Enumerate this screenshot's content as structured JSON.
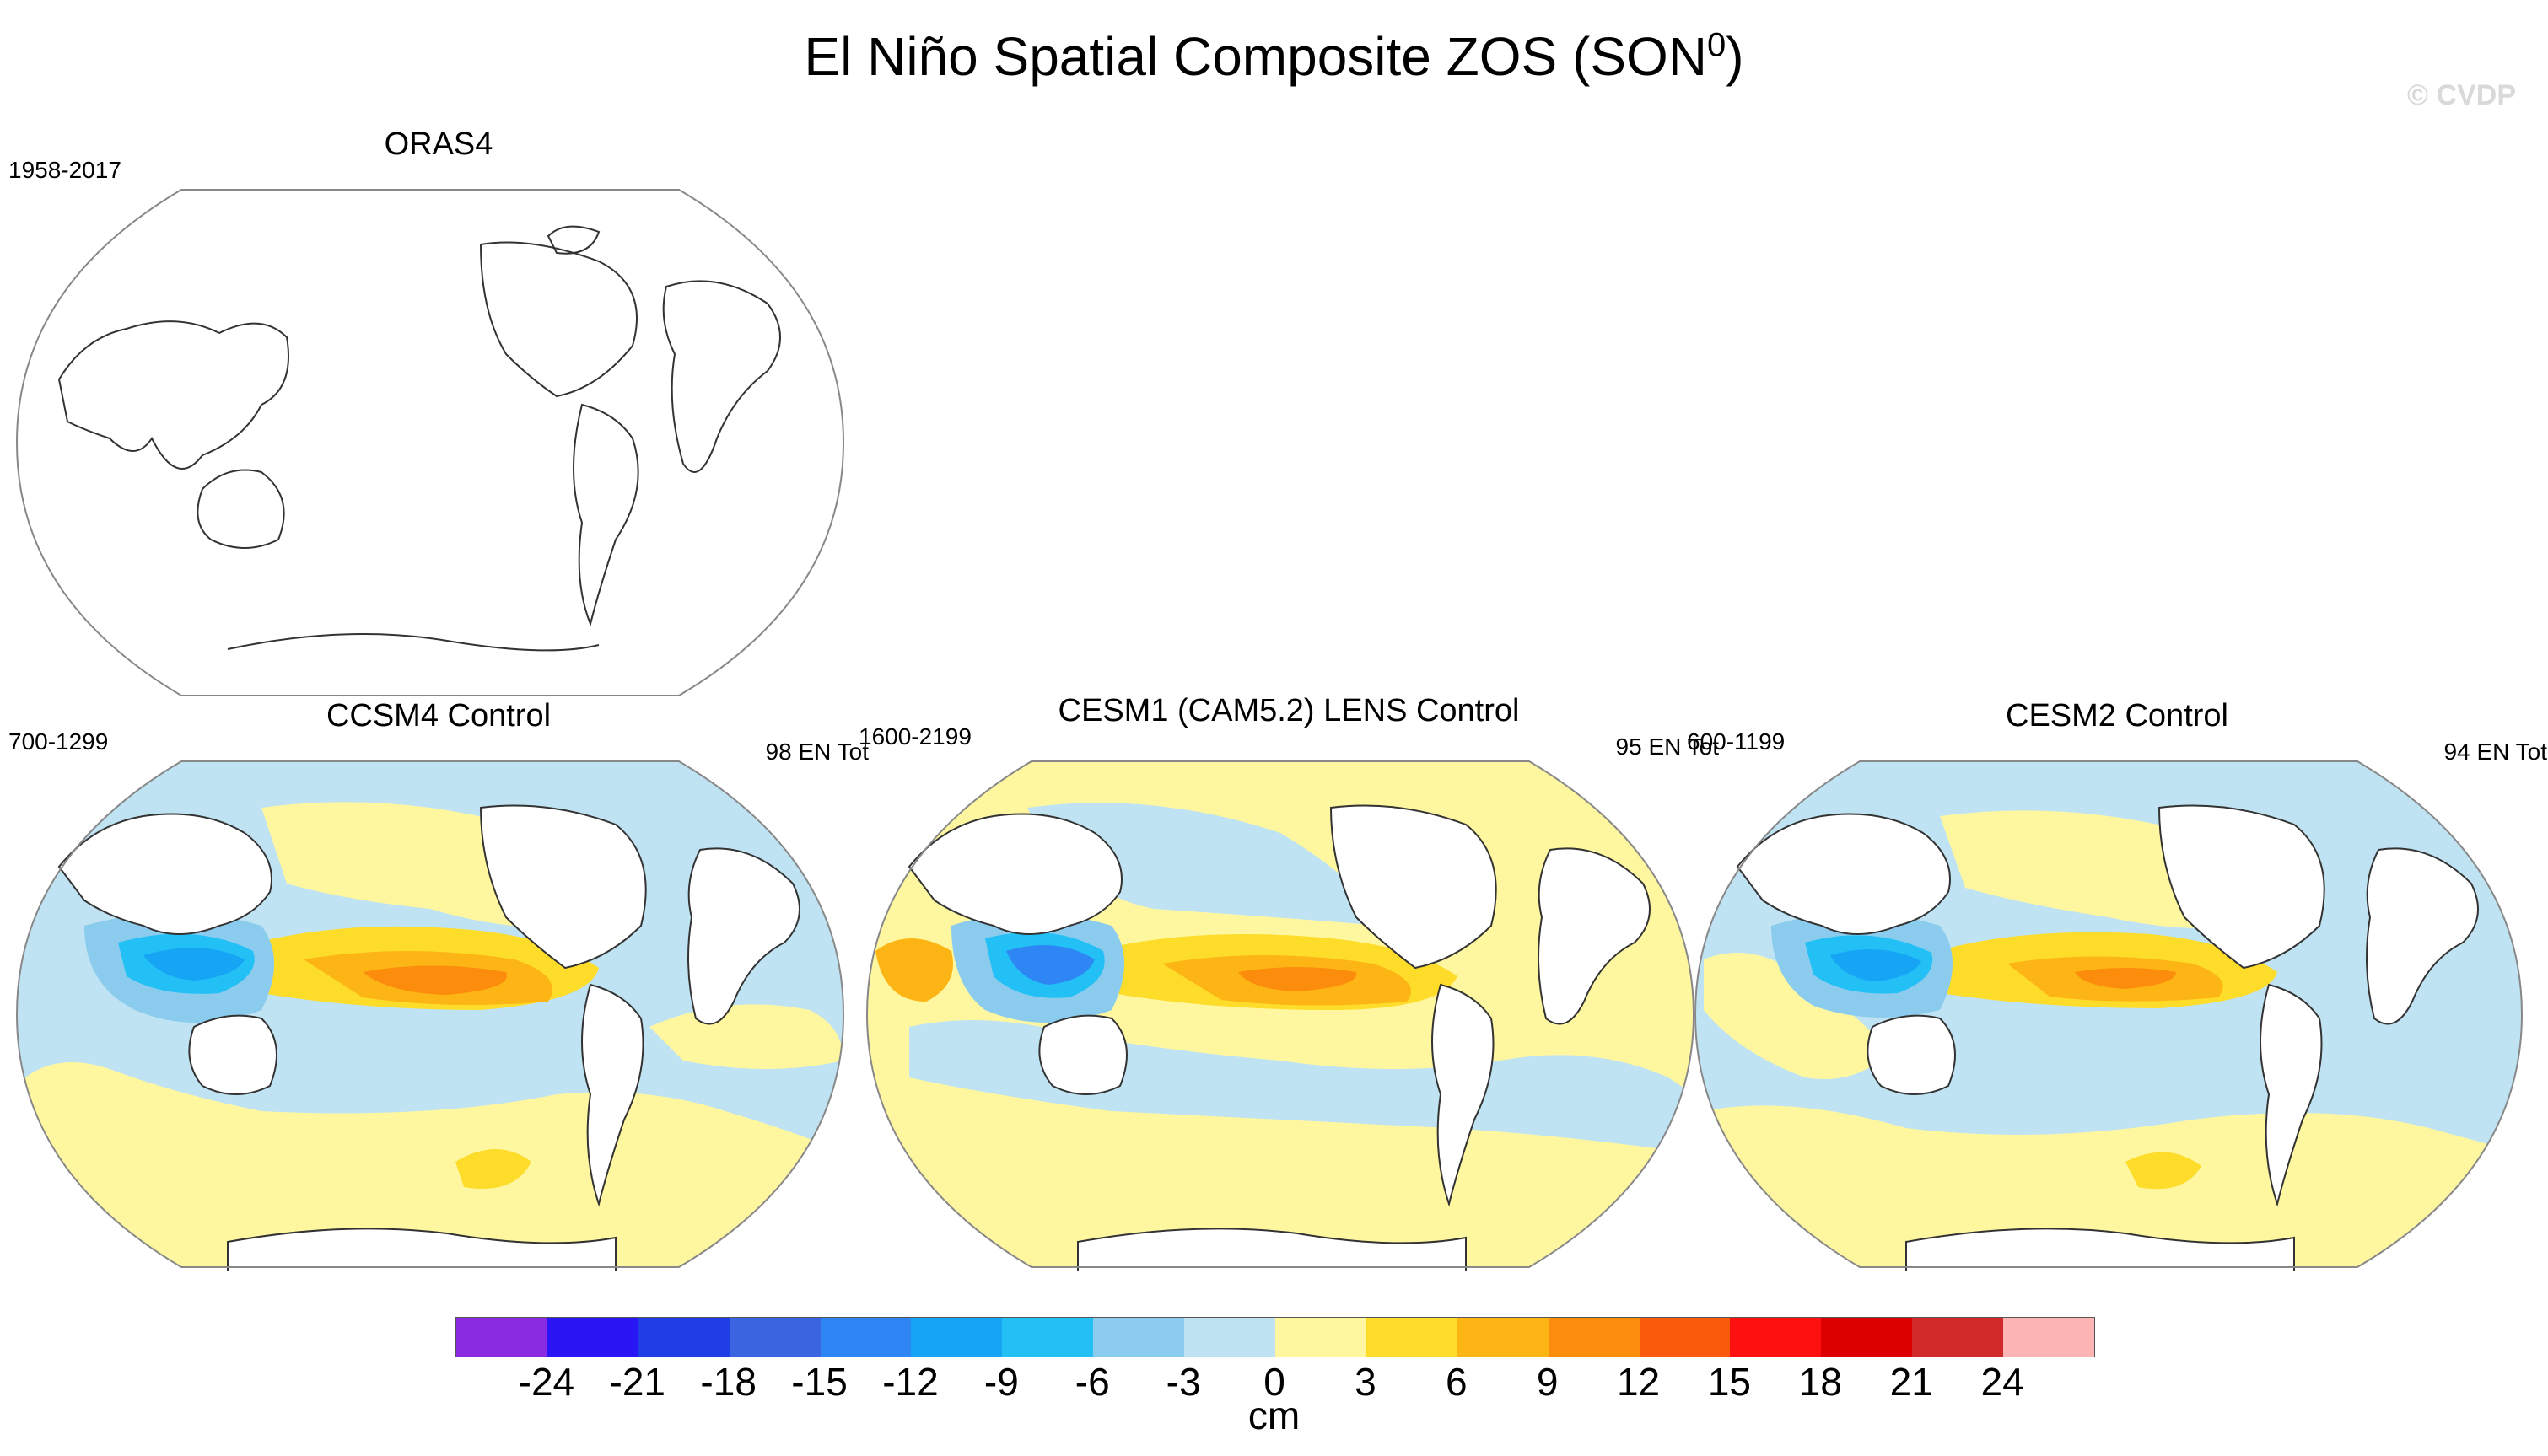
{
  "figure": {
    "title": "El Niño Spatial Composite ZOS (SON",
    "title_sup": "0",
    "title_close": ")",
    "watermark": "© CVDP"
  },
  "panels": [
    {
      "id": "oras4",
      "title": "ORAS4",
      "period": "1958-2017",
      "count": "",
      "shaded": false
    },
    {
      "id": "ccsm4",
      "title": "CCSM4 Control",
      "period": "700-1299",
      "count": "98 EN Tot",
      "shaded": true
    },
    {
      "id": "cesm1",
      "title": "CESM1 (CAM5.2) LENS Control",
      "period": "1600-2199",
      "count": "95 EN Tot",
      "shaded": true
    },
    {
      "id": "cesm2",
      "title": "CESM2 Control",
      "period": "600-1199",
      "count": "94 EN Tot",
      "shaded": true
    }
  ],
  "colorbar": {
    "units": "cm",
    "colors": [
      "#8a2be2",
      "#2a16f5",
      "#1f3ee6",
      "#3a64e0",
      "#2e86f5",
      "#16a4f5",
      "#22c0f5",
      "#8acbee",
      "#bfe3f2",
      "#fff7a0",
      "#fddc2a",
      "#fdb515",
      "#fc8c0c",
      "#fa5a0c",
      "#fc1010",
      "#dc0000",
      "#d22a2a",
      "#fcb4b4"
    ],
    "tick_labels": [
      "-24",
      "-21",
      "-18",
      "-15",
      "-12",
      "-9",
      "-6",
      "-3",
      "0",
      "3",
      "6",
      "9",
      "12",
      "15",
      "18",
      "21",
      "24"
    ]
  }
}
